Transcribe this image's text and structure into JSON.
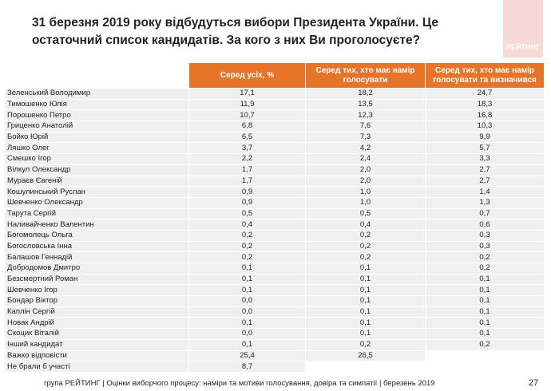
{
  "title": "31 березня 2019 року відбудуться вибори Президента України. Це остаточний список кандидатів. За кого з них Ви проголосуєте?",
  "logo_text": "РЕЙТИНГ",
  "accent_color": "#e8742a",
  "columns": [
    "Серед усіх, %",
    "Серед тих, хто має намір голосувати",
    "Серед тих, хто має намір голосувати та визначився"
  ],
  "rows": [
    [
      "Зеленський Володимир",
      "17,1",
      "18,2",
      "24,7"
    ],
    [
      "Тимошенко Юлія",
      "11,9",
      "13,5",
      "18,3"
    ],
    [
      "Порошенко Петро",
      "10,7",
      "12,3",
      "16,8"
    ],
    [
      "Гриценко Анатолій",
      "6,8",
      "7,6",
      "10,3"
    ],
    [
      "Бойко Юрій",
      "6,5",
      "7,3",
      "9,9"
    ],
    [
      "Ляшко Олег",
      "3,7",
      "4,2",
      "5,7"
    ],
    [
      "Смешко Ігор",
      "2,2",
      "2,4",
      "3,3"
    ],
    [
      "Вілкул Олександр",
      "1,7",
      "2,0",
      "2,7"
    ],
    [
      "Мураєв Євгеній",
      "1,7",
      "2,0",
      "2,7"
    ],
    [
      "Кошулинський Руслан",
      "0,9",
      "1,0",
      "1,4"
    ],
    [
      "Шевченко Олександр",
      "0,9",
      "1,0",
      "1,3"
    ],
    [
      "Тарута Сергій",
      "0,5",
      "0,5",
      "0,7"
    ],
    [
      "Наливайченко Валентин",
      "0,4",
      "0,4",
      "0,6"
    ],
    [
      "Богомолець Ольга",
      "0,2",
      "0,2",
      "0,3"
    ],
    [
      "Богословська Інна",
      "0,2",
      "0,2",
      "0,3"
    ],
    [
      "Балашов Геннадій",
      "0,2",
      "0,2",
      "0,2"
    ],
    [
      "Добродомов Дмитро",
      "0,1",
      "0,1",
      "0,2"
    ],
    [
      "Безсмертний Роман",
      "0,1",
      "0,1",
      "0,1"
    ],
    [
      "Шевченко Ігор",
      "0,1",
      "0,1",
      "0,1"
    ],
    [
      "Бондар Віктор",
      "0,0",
      "0,1",
      "0,1"
    ],
    [
      "Каплін Сергій",
      "0,0",
      "0,1",
      "0,1"
    ],
    [
      "Новак Андрій",
      "0,1",
      "0,1",
      "0,1"
    ],
    [
      "Скоцик Віталій",
      "0,0",
      "0,1",
      "0,1"
    ],
    [
      "Інший кандидат",
      "0,1",
      "0,2",
      "0,2"
    ],
    [
      "Важко відповісти",
      "25,4",
      "26,5",
      null
    ],
    [
      "Не брали б участі",
      "8,7",
      null,
      null
    ]
  ],
  "footer": "група РЕЙТИНГ | Оцінки виборчого процесу: наміри та мотиви голосування, довіра та симпатії | березень 2019",
  "page_number": "27"
}
